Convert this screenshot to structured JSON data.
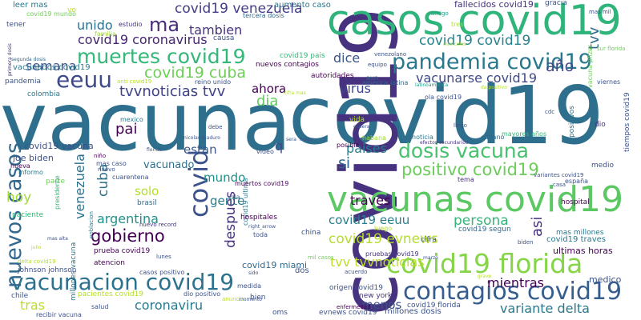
{
  "words": [
    {
      "text": "vacuna",
      "color": "#2f6f8e"
    },
    {
      "text": "covid19",
      "color": "#2f6f8e"
    },
    {
      "text": "covid19",
      "color": "#46327e"
    },
    {
      "text": "casos covid19",
      "color": "#2fb47c"
    },
    {
      "text": "vacunas covid19",
      "color": "#5cc863"
    },
    {
      "text": "covid19 florida",
      "color": "#86d549"
    },
    {
      "text": "contagios covid19",
      "color": "#365d8d"
    },
    {
      "text": "pandemia covid19",
      "color": "#2a788e"
    },
    {
      "text": "vacunacion covid19",
      "color": "#2c728e"
    },
    {
      "text": "muertes covid19",
      "color": "#35b779"
    },
    {
      "text": "nuevos casos",
      "color": "#31688e"
    },
    {
      "text": "covid",
      "color": "#3b528b"
    },
    {
      "text": "eeuu",
      "color": "#3e4a89"
    },
    {
      "text": "dosis vacuna",
      "color": "#48c16e"
    },
    {
      "text": "positivo covid19",
      "color": "#6ccd5a"
    },
    {
      "text": "gobierno",
      "color": "#440154"
    },
    {
      "text": "ma",
      "color": "#472d7b"
    },
    {
      "text": "covid19 cuba",
      "color": "#6ece58"
    },
    {
      "text": "tvvnoticias tvv",
      "color": "#404387"
    },
    {
      "text": "dia",
      "color": "#63cb5f"
    },
    {
      "text": "covid19 venezuela",
      "color": "#433e85"
    },
    {
      "text": "covid19 coronavirus",
      "color": "#482475"
    },
    {
      "text": "unido",
      "color": "#2c728e"
    },
    {
      "text": "tambien",
      "color": "#46337e"
    },
    {
      "text": "semana",
      "color": "#3a548c"
    },
    {
      "text": "dice",
      "color": "#3a548c"
    },
    {
      "text": "covid19 covid19",
      "color": "#26828e"
    },
    {
      "text": "tvv",
      "color": "#2f6b8e"
    },
    {
      "text": "año",
      "color": "#3f4788"
    },
    {
      "text": "vacunarse covid19",
      "color": "#3e4989"
    },
    {
      "text": "ahora",
      "color": "#440154"
    },
    {
      "text": "virus",
      "color": "#404688"
    },
    {
      "text": "si",
      "color": "#31688e"
    },
    {
      "text": "pai",
      "color": "#440154"
    },
    {
      "text": "estan",
      "color": "#39568c"
    },
    {
      "text": "q",
      "color": "#3e4a89"
    },
    {
      "text": "paises",
      "color": "#287d8e"
    },
    {
      "text": "mundo",
      "color": "#21918c"
    },
    {
      "text": "vacunado",
      "color": "#2d708e"
    },
    {
      "text": "cuba",
      "color": "#2c728e"
    },
    {
      "text": "venezuela",
      "color": "#2c728e"
    },
    {
      "text": "hoy",
      "color": "#a2da37"
    },
    {
      "text": "solo",
      "color": "#b5de2b"
    },
    {
      "text": "argentina",
      "color": "#21908d"
    },
    {
      "text": "gente",
      "color": "#287c8e"
    },
    {
      "text": "traves",
      "color": "#440154"
    },
    {
      "text": "covid19 eeuu",
      "color": "#287d8e"
    },
    {
      "text": "persona",
      "color": "#34b679"
    },
    {
      "text": "asi",
      "color": "#46327e"
    },
    {
      "text": "despues",
      "color": "#46327e"
    },
    {
      "text": "covid19 evnews",
      "color": "#b5de2b"
    },
    {
      "text": "tvv tvvnoticias",
      "color": "#bddf26"
    },
    {
      "text": "mientras",
      "color": "#440154"
    },
    {
      "text": "tras",
      "color": "#bade28"
    },
    {
      "text": "coronaviru",
      "color": "#2a788e"
    },
    {
      "text": "menos",
      "color": "#3b528b"
    },
    {
      "text": "variante delta",
      "color": "#2a788e"
    },
    {
      "text": "covid19 vacuna",
      "color": "#3b528b"
    },
    {
      "text": "joe biden",
      "color": "#3b528b"
    },
    {
      "text": "covid19 miami",
      "color": "#31688e"
    },
    {
      "text": "leer mas",
      "color": "#2a788e"
    },
    {
      "text": "covid19 mundo",
      "color": "#6ece58"
    },
    {
      "text": "tener",
      "color": "#3b528b"
    },
    {
      "text": "vo",
      "color": "#bddf26"
    },
    {
      "text": "estudio",
      "color": "#46327e"
    },
    {
      "text": "familia",
      "color": "#a2da37"
    },
    {
      "text": "tercera dosis",
      "color": "#31688e"
    },
    {
      "text": "aumento caso",
      "color": "#2a788e"
    },
    {
      "text": "fallecidos covid19",
      "color": "#46327e"
    },
    {
      "text": "gracia",
      "color": "#3b528b"
    },
    {
      "text": "mas mil",
      "color": "#3b528b"
    },
    {
      "text": "amigo",
      "color": "#1f9e89"
    },
    {
      "text": "vacunados covid19",
      "color": "#2a788e"
    },
    {
      "text": "pandemia",
      "color": "#3b528b"
    },
    {
      "text": "segunda dosis",
      "color": "#31688e"
    },
    {
      "text": "causa",
      "color": "#3b528b"
    },
    {
      "text": "covid19 pais",
      "color": "#35b779"
    },
    {
      "text": "autoridades",
      "color": "#440154"
    },
    {
      "text": "nuevos contagios",
      "color": "#440154"
    },
    {
      "text": "covid19 ultima",
      "color": "#2a788e"
    },
    {
      "text": "equipo",
      "color": "#3b528b"
    },
    {
      "text": "venezolano",
      "color": "#3b528b"
    },
    {
      "text": "tres",
      "color": "#b5de2b"
    },
    {
      "text": "miercoles",
      "color": "#a2da37"
    },
    {
      "text": "anti covid19",
      "color": "#b5de2b"
    },
    {
      "text": "reino unido",
      "color": "#3b528b"
    },
    {
      "text": "america latina",
      "color": "#31688e"
    },
    {
      "text": "aun",
      "color": "#31688e"
    },
    {
      "text": "latinoamerica",
      "color": "#1f9e89"
    },
    {
      "text": "vacuna pfizer",
      "color": "#6ece58"
    },
    {
      "text": "sur florida",
      "color": "#6ece58"
    },
    {
      "text": "viernes",
      "color": "#3b528b"
    },
    {
      "text": "ola covid19",
      "color": "#3b528b"
    },
    {
      "text": "da positivo",
      "color": "#b5de2b"
    },
    {
      "text": "colombia",
      "color": "#2a788e"
    },
    {
      "text": "cifra mas",
      "color": "#b5de2b"
    },
    {
      "text": "positivos",
      "color": "#2a788e"
    },
    {
      "text": "dio",
      "color": "#46327e"
    },
    {
      "text": "tiempos covid19",
      "color": "#3b528b"
    },
    {
      "text": "mexico",
      "color": "#2a788e"
    },
    {
      "text": "vida",
      "color": "#b5de2b"
    },
    {
      "text": "cubano",
      "color": "#31688e"
    },
    {
      "text": "llego",
      "color": "#3b528b"
    },
    {
      "text": "cdc",
      "color": "#3b528b"
    },
    {
      "text": "habana",
      "color": "#a2da37"
    },
    {
      "text": "noticia",
      "color": "#2a788e"
    },
    {
      "text": "mayores años",
      "color": "#35b779"
    },
    {
      "text": "posible",
      "color": "#440154"
    },
    {
      "text": "efectos secundarios",
      "color": "#46327e"
    },
    {
      "text": "medio",
      "color": "#3b528b"
    },
    {
      "text": "cuarentena",
      "color": "#3b528b"
    },
    {
      "text": "isla",
      "color": "#31688e"
    },
    {
      "text": "video",
      "color": "#3b528b"
    },
    {
      "text": "mas caso",
      "color": "#3b528b"
    },
    {
      "text": "informo",
      "color": "#2a788e"
    },
    {
      "text": "parte",
      "color": "#6ece58"
    },
    {
      "text": "nueva",
      "color": "#440154"
    },
    {
      "text": "niño",
      "color": "#440154"
    },
    {
      "text": "paciente",
      "color": "#35b779"
    },
    {
      "text": "presidente",
      "color": "#35b779"
    },
    {
      "text": "muertos covid19",
      "color": "#440154"
    },
    {
      "text": "tema",
      "color": "#46327e"
    },
    {
      "text": "variantes covid19",
      "color": "#3b528b"
    },
    {
      "text": "españa",
      "color": "#3b528b"
    },
    {
      "text": "casa",
      "color": "#3b528b"
    },
    {
      "text": "hospital",
      "color": "#440154"
    },
    {
      "text": "brasil",
      "color": "#31688e"
    },
    {
      "text": "cifra",
      "color": "#3b528b"
    },
    {
      "text": "covid19 segun",
      "color": "#31688e"
    },
    {
      "text": "hospitales",
      "color": "#440154"
    },
    {
      "text": "nuevo record",
      "color": "#46327e"
    },
    {
      "text": "toda",
      "color": "#3b528b"
    },
    {
      "text": "right_arrow",
      "color": "#3b528b"
    },
    {
      "text": "china",
      "color": "#3b528b"
    },
    {
      "text": "luego",
      "color": "#b5de2b"
    },
    {
      "text": "mas millones",
      "color": "#2a788e"
    },
    {
      "text": "covid19 traves",
      "color": "#2a788e"
    },
    {
      "text": "ultimas horas",
      "color": "#440154"
    },
    {
      "text": "mas alta",
      "color": "#3b528b"
    },
    {
      "text": "poblacion",
      "color": "#2a788e"
    },
    {
      "text": "millones vacuna",
      "color": "#2a788e"
    },
    {
      "text": "prueba covid19",
      "color": "#440154"
    },
    {
      "text": "delta covid19",
      "color": "#b5de2b"
    },
    {
      "text": "lunes",
      "color": "#3b528b"
    },
    {
      "text": "atencion",
      "color": "#440154"
    },
    {
      "text": "johnson johnson",
      "color": "#3b528b"
    },
    {
      "text": "casos positivo",
      "color": "#3b528b"
    },
    {
      "text": "mil casos",
      "color": "#6ece58"
    },
    {
      "text": "acuerdo",
      "color": "#3b528b"
    },
    {
      "text": "pruebas covid19",
      "color": "#46327e"
    },
    {
      "text": "biden",
      "color": "#3b528b"
    },
    {
      "text": "marzo",
      "color": "#3b528b"
    },
    {
      "text": "dos",
      "color": "#3b528b"
    },
    {
      "text": "chile",
      "color": "#3b528b"
    },
    {
      "text": "pacientes covid19",
      "color": "#b5de2b"
    },
    {
      "text": "dio positivo",
      "color": "#3b528b"
    },
    {
      "text": "origen covid19",
      "color": "#3b528b"
    },
    {
      "text": "new york",
      "color": "#46327e"
    },
    {
      "text": "medico",
      "color": "#3b528b"
    },
    {
      "text": "salud",
      "color": "#3b528b"
    },
    {
      "text": "recibir vacuna",
      "color": "#3b528b"
    },
    {
      "text": "oms",
      "color": "#3b528b"
    },
    {
      "text": "evnews covid19",
      "color": "#3b528b"
    },
    {
      "text": "millones dosis",
      "color": "#3b528b"
    },
    {
      "text": "covid19 florida",
      "color": "#3b528b"
    },
    {
      "text": "enfermedad",
      "color": "#440154"
    },
    {
      "text": "grave",
      "color": "#b5de2b"
    },
    {
      "text": "bien",
      "color": "#3b528b"
    },
    {
      "text": "medida",
      "color": "#3b528b"
    },
    {
      "text": "sido",
      "color": "#3b528b"
    },
    {
      "text": "momento",
      "color": "#3b528b"
    },
    {
      "text": "anuncio",
      "color": "#b5de2b"
    },
    {
      "text": "primera dosis",
      "color": "#46327e"
    },
    {
      "text": "nicolas maduro",
      "color": "#3b528b"
    },
    {
      "text": "espera",
      "color": "#3b528b"
    },
    {
      "text": "nuevo",
      "color": "#3b528b"
    },
    {
      "text": "sera",
      "color": "#3b528b"
    },
    {
      "text": "mejor",
      "color": "#3b528b"
    },
    {
      "text": "debe",
      "color": "#3b528b"
    },
    {
      "text": "florida",
      "color": "#3b528b"
    },
    {
      "text": "julio",
      "color": "#b5de2b"
    }
  ]
}
